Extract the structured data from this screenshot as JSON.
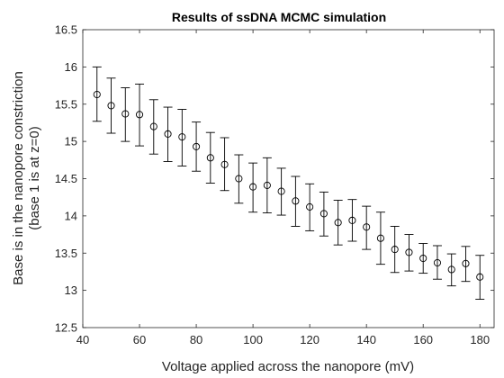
{
  "chart_data": {
    "type": "scatter",
    "title": "Results of ssDNA MCMC simulation",
    "xlabel": "Voltage applied across the nanopore (mV)",
    "ylabel_line1": "Base is in the nanopore constriction",
    "ylabel_line2": "(base 1 is at z=0)",
    "xlim": [
      40,
      185
    ],
    "ylim": [
      12.5,
      16.5
    ],
    "xticks": [
      40,
      60,
      80,
      100,
      120,
      140,
      160,
      180
    ],
    "yticks": [
      12.5,
      13,
      13.5,
      14,
      14.5,
      15,
      15.5,
      16,
      16.5
    ],
    "xtick_labels": [
      "40",
      "60",
      "80",
      "100",
      "120",
      "140",
      "160",
      "180"
    ],
    "ytick_labels": [
      "12.5",
      "13",
      "13.5",
      "14",
      "14.5",
      "15",
      "15.5",
      "16",
      "16.5"
    ],
    "grid": false,
    "marker": "open-circle",
    "points": [
      {
        "x": 45,
        "y": 15.63,
        "low": 15.27,
        "high": 16.0
      },
      {
        "x": 50,
        "y": 15.48,
        "low": 15.11,
        "high": 15.85
      },
      {
        "x": 55,
        "y": 15.37,
        "low": 15.0,
        "high": 15.72
      },
      {
        "x": 60,
        "y": 15.36,
        "low": 14.94,
        "high": 15.77
      },
      {
        "x": 65,
        "y": 15.2,
        "low": 14.83,
        "high": 15.56
      },
      {
        "x": 70,
        "y": 15.1,
        "low": 14.73,
        "high": 15.46
      },
      {
        "x": 75,
        "y": 15.06,
        "low": 14.67,
        "high": 15.43
      },
      {
        "x": 80,
        "y": 14.93,
        "low": 14.6,
        "high": 15.26
      },
      {
        "x": 85,
        "y": 14.78,
        "low": 14.44,
        "high": 15.12
      },
      {
        "x": 90,
        "y": 14.69,
        "low": 14.34,
        "high": 15.05
      },
      {
        "x": 95,
        "y": 14.5,
        "low": 14.17,
        "high": 14.82
      },
      {
        "x": 100,
        "y": 14.39,
        "low": 14.05,
        "high": 14.71
      },
      {
        "x": 105,
        "y": 14.41,
        "low": 14.04,
        "high": 14.78
      },
      {
        "x": 110,
        "y": 14.33,
        "low": 14.01,
        "high": 14.64
      },
      {
        "x": 115,
        "y": 14.2,
        "low": 13.86,
        "high": 14.53
      },
      {
        "x": 120,
        "y": 14.12,
        "low": 13.8,
        "high": 14.43
      },
      {
        "x": 125,
        "y": 14.03,
        "low": 13.73,
        "high": 14.32
      },
      {
        "x": 130,
        "y": 13.91,
        "low": 13.61,
        "high": 14.21
      },
      {
        "x": 135,
        "y": 13.94,
        "low": 13.66,
        "high": 14.22
      },
      {
        "x": 140,
        "y": 13.85,
        "low": 13.55,
        "high": 14.13
      },
      {
        "x": 145,
        "y": 13.7,
        "low": 13.35,
        "high": 14.05
      },
      {
        "x": 150,
        "y": 13.55,
        "low": 13.24,
        "high": 13.86
      },
      {
        "x": 155,
        "y": 13.51,
        "low": 13.26,
        "high": 13.75
      },
      {
        "x": 160,
        "y": 13.43,
        "low": 13.23,
        "high": 13.63
      },
      {
        "x": 165,
        "y": 13.37,
        "low": 13.15,
        "high": 13.6
      },
      {
        "x": 170,
        "y": 13.28,
        "low": 13.06,
        "high": 13.49
      },
      {
        "x": 175,
        "y": 13.36,
        "low": 13.12,
        "high": 13.59
      },
      {
        "x": 180,
        "y": 13.18,
        "low": 12.88,
        "high": 13.47
      }
    ]
  }
}
